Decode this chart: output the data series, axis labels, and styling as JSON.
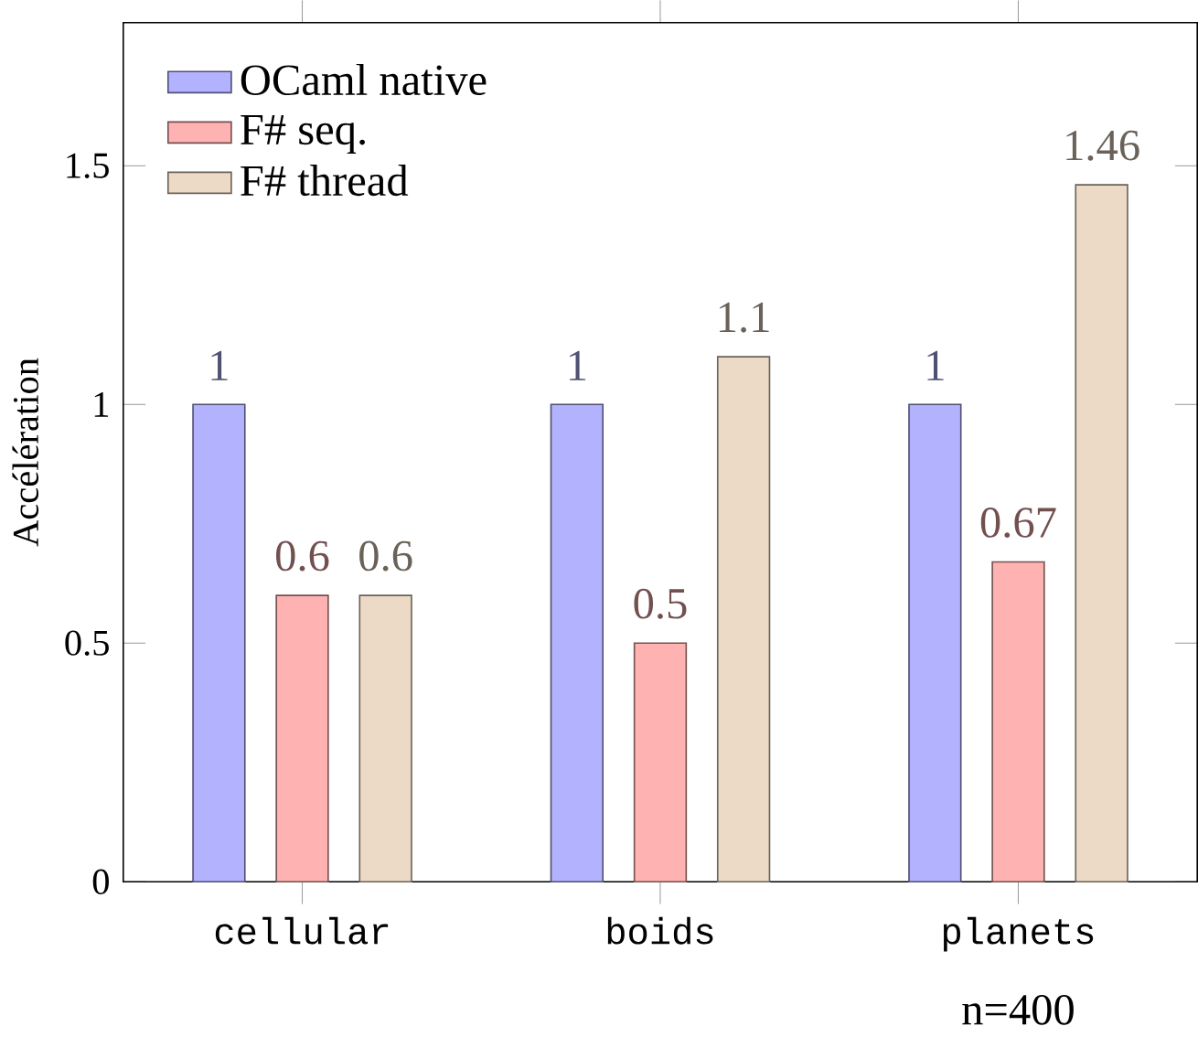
{
  "chart_data": {
    "type": "bar",
    "ylabel": "Accélération",
    "categories": [
      "cellular",
      "boids",
      "planets"
    ],
    "series": [
      {
        "name": "OCaml native",
        "color": "#b2b2ff",
        "values": [
          1,
          1,
          1
        ]
      },
      {
        "name": "F# seq.",
        "color": "#ffb2b2",
        "values": [
          0.6,
          0.5,
          0.67
        ]
      },
      {
        "name": "F# thread",
        "color": "#ecd9c6",
        "values": [
          0.6,
          1.1,
          1.46
        ]
      }
    ],
    "ylim": [
      0,
      1.8
    ],
    "yticks": [
      0,
      0.5,
      1,
      1.5
    ],
    "data_labels": true,
    "legend": "top left",
    "annotations": [
      "n=400"
    ]
  }
}
